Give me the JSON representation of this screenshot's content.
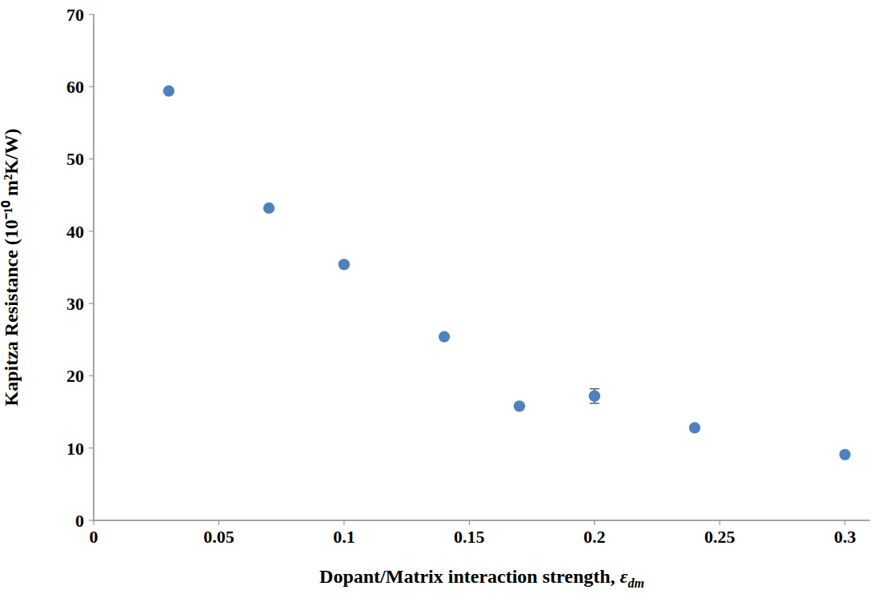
{
  "chart_data": {
    "type": "scatter",
    "x_label": "Dopant/Matrix interaction strength, εdm",
    "y_label": "Kapitza Resistance (10⁻¹⁰ m²K/W)",
    "x": [
      0.03,
      0.07,
      0.1,
      0.14,
      0.17,
      0.2,
      0.24,
      0.3
    ],
    "values": [
      59.4,
      43.2,
      35.4,
      25.4,
      15.8,
      17.2,
      12.8,
      9.1
    ],
    "errors": [
      null,
      null,
      null,
      null,
      null,
      1.0,
      null,
      null
    ],
    "xlim": [
      0,
      0.31
    ],
    "ylim": [
      0,
      70
    ],
    "xticks": [
      0,
      0.05,
      0.1,
      0.15,
      0.2,
      0.25,
      0.3
    ],
    "yticks": [
      0,
      10,
      20,
      30,
      40,
      50,
      60,
      70
    ],
    "color": "#4f81bd",
    "marker": "circle",
    "grid": false
  }
}
